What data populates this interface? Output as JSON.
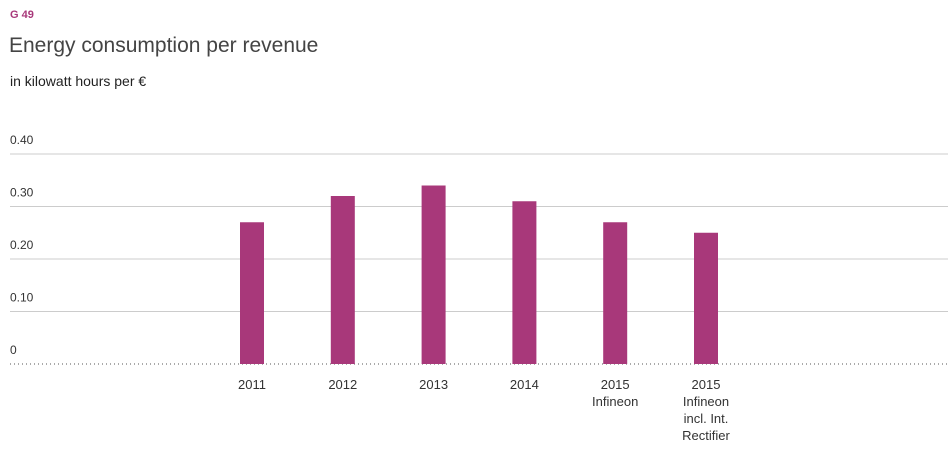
{
  "chart_data": {
    "type": "bar",
    "label": "G 49",
    "title": "Energy consumption per revenue",
    "subtitle": "in kilowatt hours per €",
    "categories": [
      "2011",
      "2012",
      "2013",
      "2014",
      "2015\nInfineon",
      "2015\nInfineon\nincl. Int.\nRectifier"
    ],
    "values": [
      0.27,
      0.32,
      0.34,
      0.31,
      0.27,
      0.25
    ],
    "color": "#a8387a",
    "ylim": [
      0,
      0.4
    ],
    "yticks": [
      0,
      {
        "value": 0.1,
        "label": "0.10"
      },
      {
        "value": 0.2,
        "label": "0.20"
      },
      {
        "value": 0.3,
        "label": "0.30"
      },
      {
        "value": 0.4,
        "label": "0.40"
      }
    ],
    "grid": true
  }
}
